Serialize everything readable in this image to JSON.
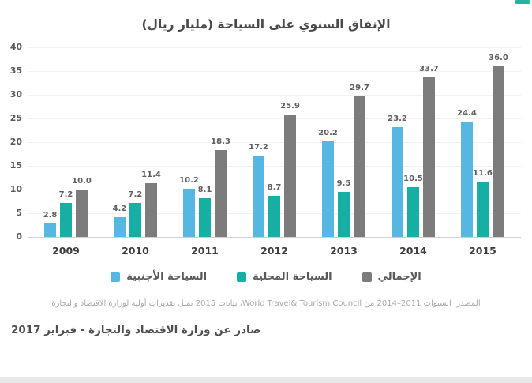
{
  "title": "الإنفاق السنوي على السياحة (مليار ريال)",
  "chart_data": {
    "type": "bar",
    "title": "الإنفاق السنوي على السياحة (مليار ريال)",
    "categories": [
      "2009",
      "2010",
      "2011",
      "2012",
      "2013",
      "2014",
      "2015"
    ],
    "series": [
      {
        "key": "foreign-tourism",
        "name": "السياحة الأجنبية",
        "color": "#56B7E2",
        "values": [
          2.8,
          4.2,
          10.2,
          17.2,
          20.2,
          23.2,
          24.4
        ]
      },
      {
        "key": "domestic-tourism",
        "name": "السياحة المحلية",
        "color": "#17AFA3",
        "values": [
          7.2,
          7.2,
          8.1,
          8.7,
          9.5,
          10.5,
          11.6
        ]
      },
      {
        "key": "total",
        "name": "الإجمالي",
        "color": "#7C7C7C",
        "values": [
          10.0,
          11.4,
          18.3,
          25.9,
          29.7,
          33.7,
          36.0
        ]
      }
    ],
    "ylim": [
      0,
      40
    ],
    "yticks": [
      0,
      5,
      10,
      15,
      20,
      25,
      30,
      35,
      40
    ],
    "grid": true,
    "legend_position": "bottom",
    "value_labels": true,
    "value_label_format": "0.0"
  },
  "footer": {
    "source": "المصدر: السنوات 2011–2014 من World Travel& Tourism Council، بيانات 2015 تمثل تقديرات أولية لوزارة الاقتصاد والتجارة",
    "issued": "صادر عن وزارة الاقتصاد والتجارة - فبراير 2017"
  },
  "colors": {
    "foreign_tourism": "#56B7E2",
    "domestic_tourism": "#17AFA3",
    "total": "#7C7C7C",
    "title_text": "#4A4A4A",
    "axis_text": "#595959",
    "year_text": "#3D3D3D",
    "value_text": "#5F5F5F",
    "gridline": "#F1F1F1",
    "baseline": "#D0D0D0",
    "source_text": "#A9A9A9",
    "issued_text": "#4F4F4F",
    "bottom_strip": "#E9E9E9",
    "brand_mark": "#27B3A2",
    "background": "#FFFFFF"
  }
}
